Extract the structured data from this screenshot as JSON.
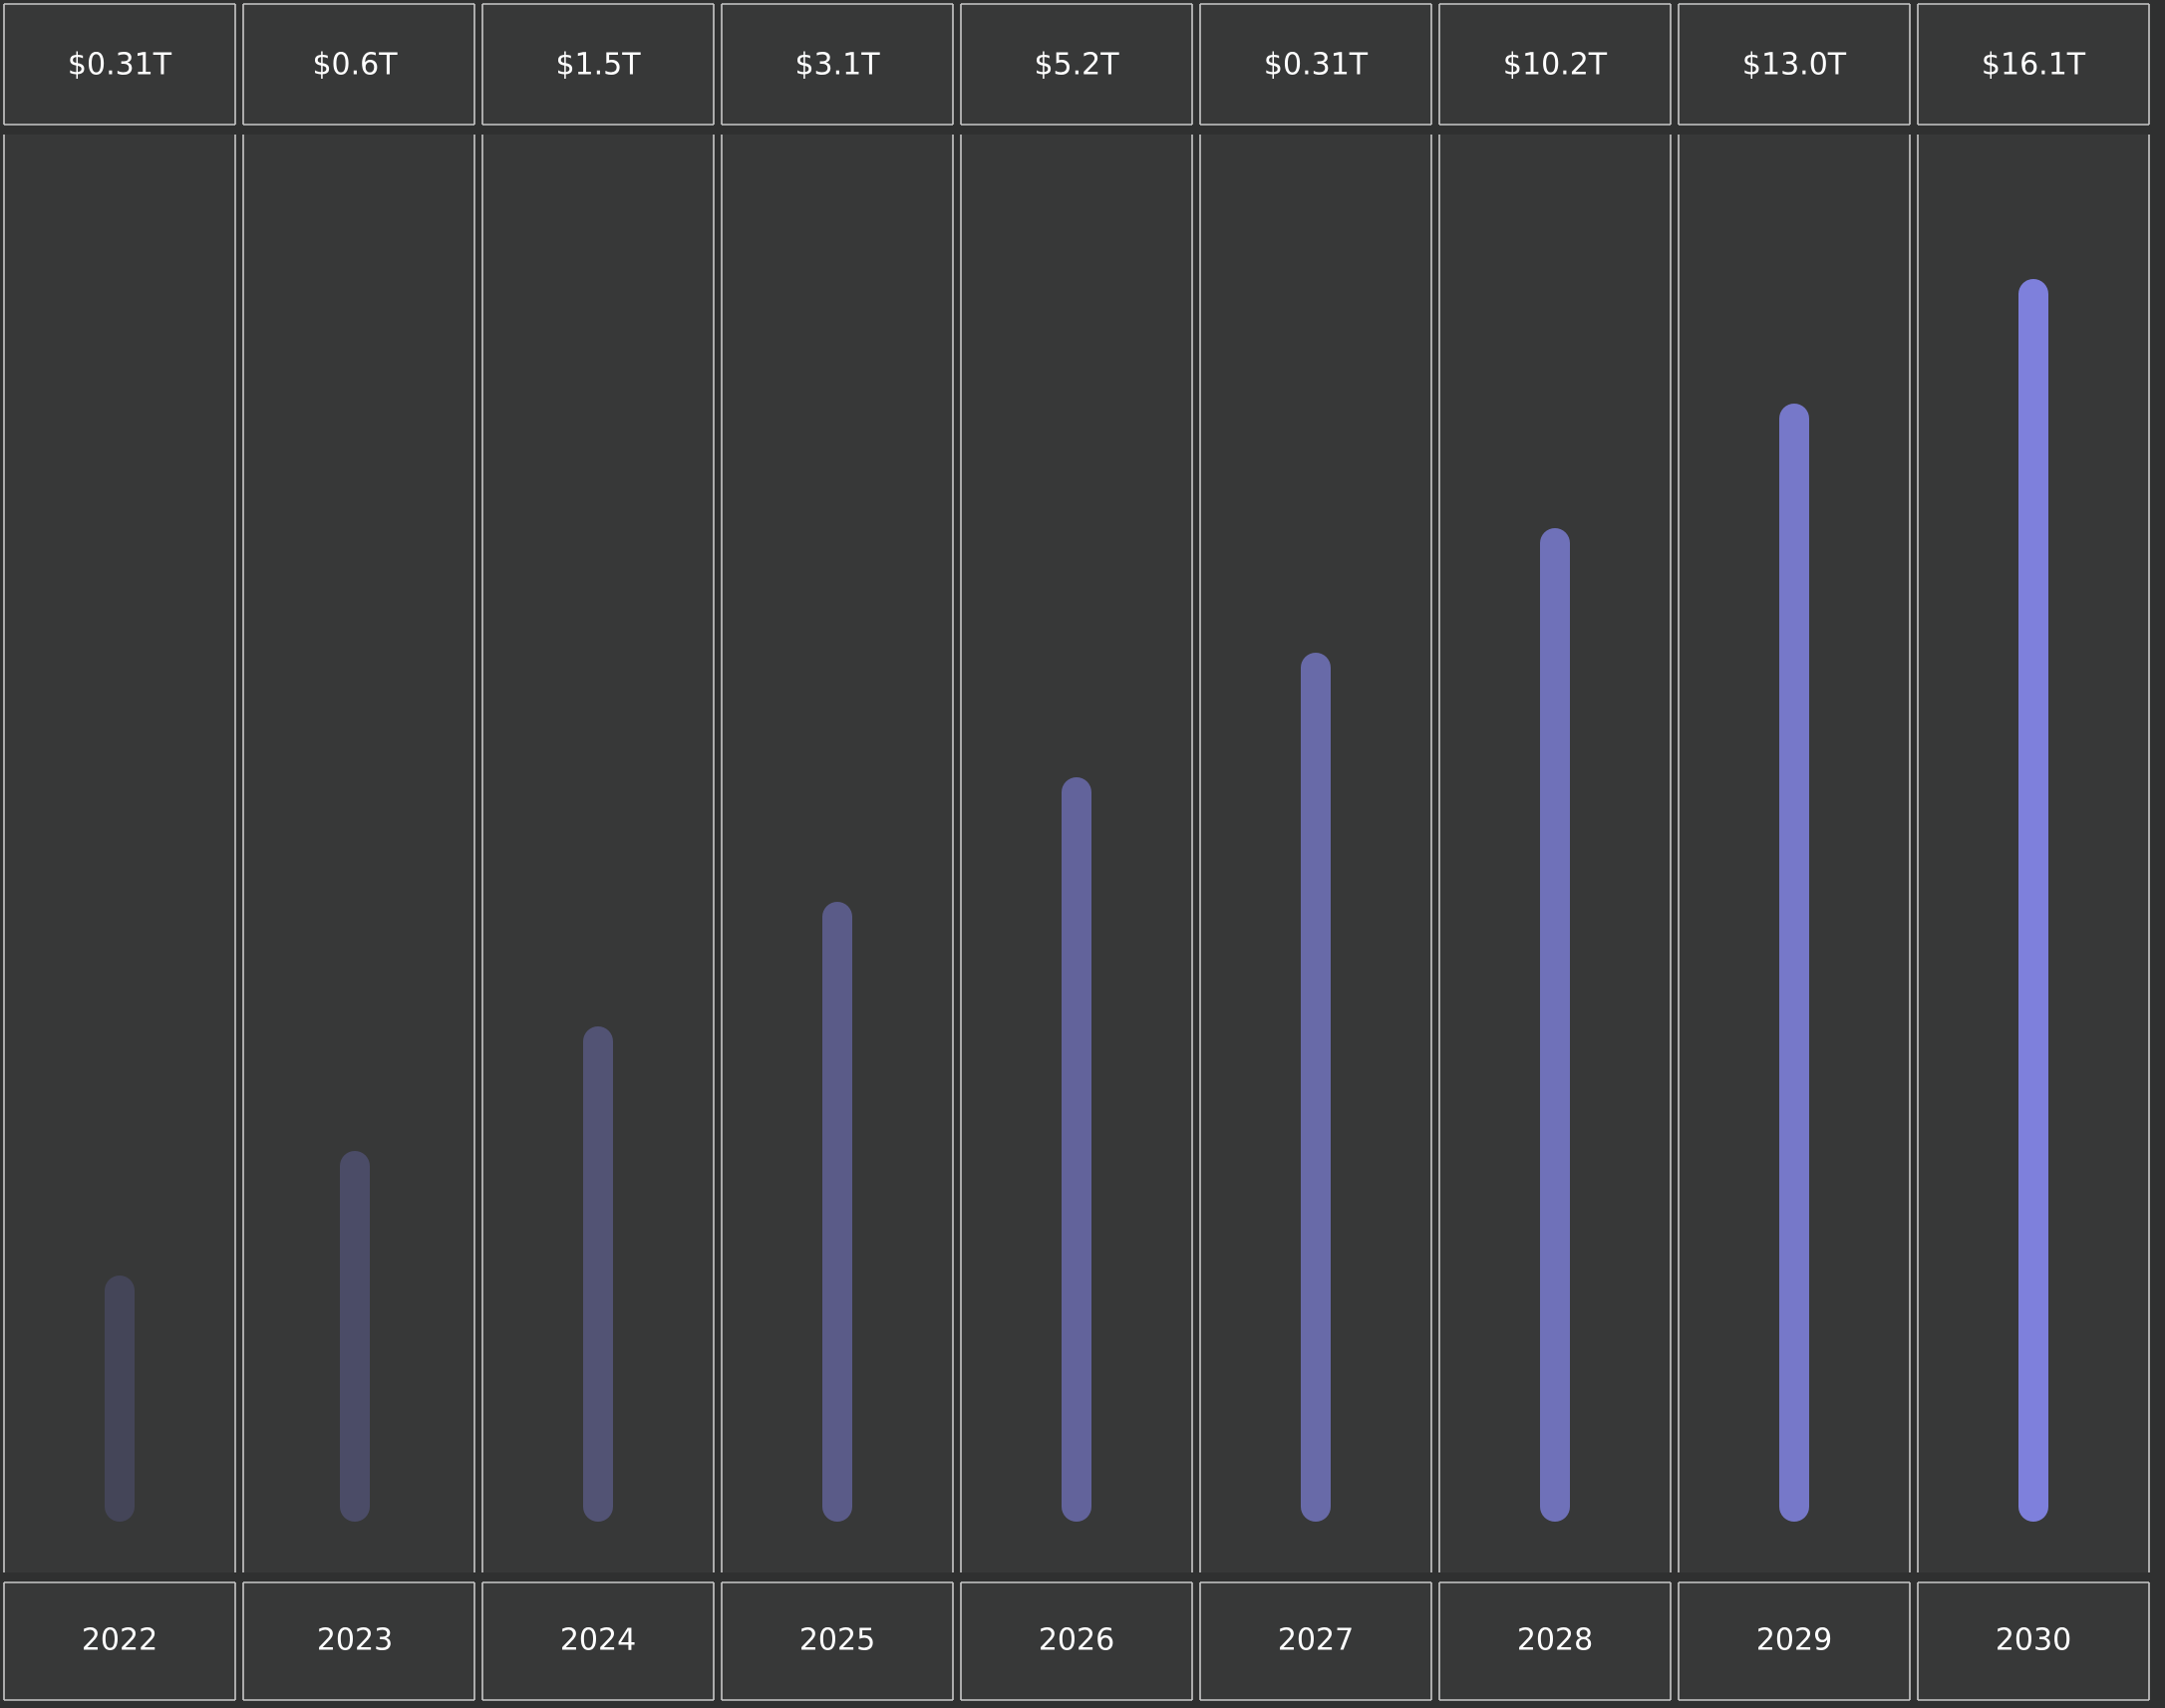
{
  "chart_data": {
    "type": "bar",
    "categories": [
      "2022",
      "2023",
      "2024",
      "2025",
      "2026",
      "2027",
      "2028",
      "2029",
      "2030"
    ],
    "value_labels": [
      "$0.31T",
      "$0.6T",
      "$1.5T",
      "$3.1T",
      "$5.2T",
      "$0.31T",
      "$10.2T",
      "$13.0T",
      "$16.1T"
    ],
    "bar_colors": [
      "#444558",
      "#4b4c67",
      "#525374",
      "#5a5b88",
      "#62639b",
      "#686aa8",
      "#6f71b9",
      "#7678c9",
      "#7e80dc"
    ],
    "grid": false,
    "legend": "none"
  }
}
